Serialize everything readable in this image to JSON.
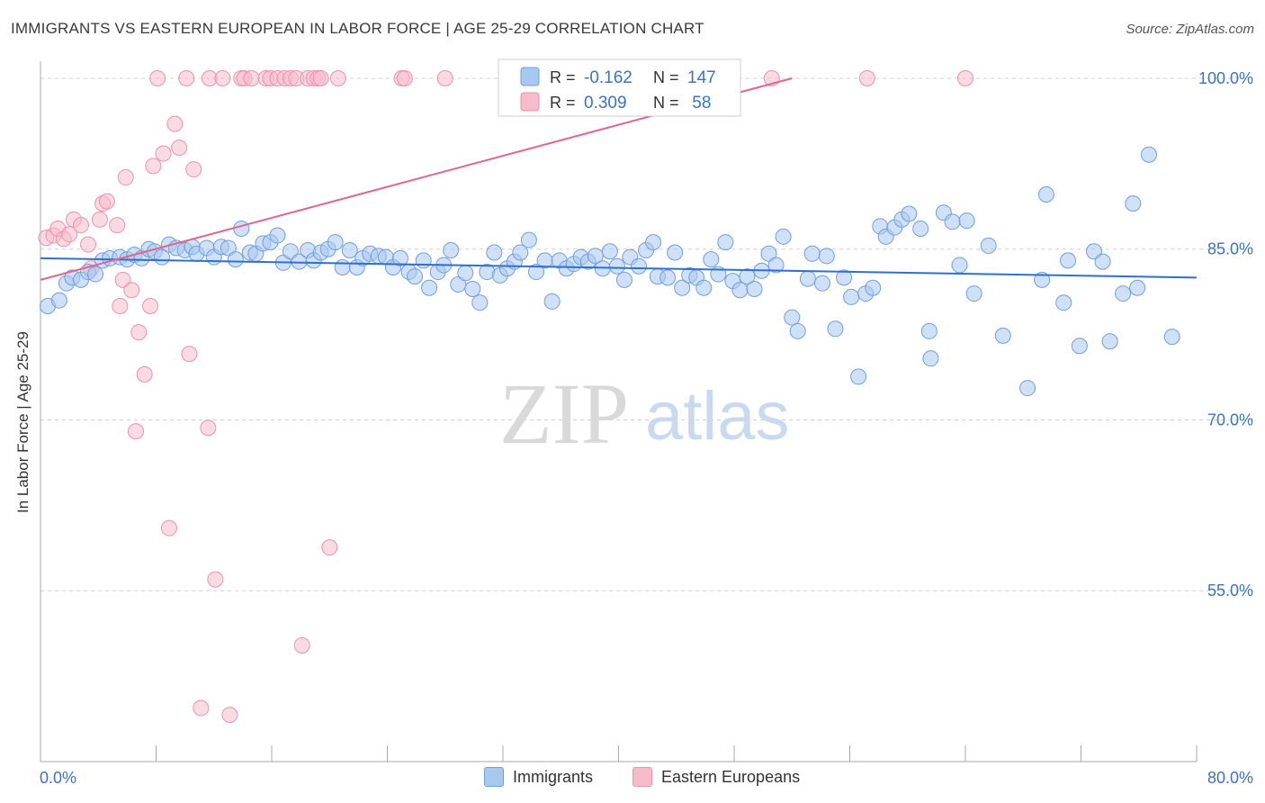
{
  "title": "IMMIGRANTS VS EASTERN EUROPEAN IN LABOR FORCE | AGE 25-29 CORRELATION CHART",
  "source": "Source: ZipAtlas.com",
  "watermark": {
    "zip": "ZIP",
    "atlas": "atlas"
  },
  "colors": {
    "blue_fill": "#a9c8f0",
    "blue_stroke": "#6f9fe0",
    "blue_line": "#2e6fcf",
    "pink_fill": "#f6bccc",
    "pink_stroke": "#ee92ad",
    "pink_line": "#e0668e",
    "axis_text": "#3b72c8",
    "grid": "#d0d0d0"
  },
  "legend_box": {
    "rows": [
      {
        "r_label": "R = ",
        "r_value": "-0.162",
        "n_label": "N = ",
        "n_value": "147",
        "series": "blue"
      },
      {
        "r_label": "R = ",
        "r_value": "0.309",
        "n_label": "N = ",
        "n_value": " 58",
        "series": "pink"
      }
    ]
  },
  "legend_bottom": [
    {
      "label": "Immigrants",
      "series": "blue"
    },
    {
      "label": "Eastern Europeans",
      "series": "pink"
    }
  ],
  "chart_data": {
    "type": "scatter",
    "title": "IMMIGRANTS VS EASTERN EUROPEAN IN LABOR FORCE | AGE 25-29 CORRELATION CHART",
    "xlabel": "",
    "ylabel": "In Labor Force | Age 25-29",
    "xlim": [
      0,
      80
    ],
    "ylim": [
      40,
      101.5
    ],
    "x_tick_labels": [
      "0.0%",
      "80.0%"
    ],
    "y_ticks": [
      55,
      70,
      85,
      100
    ],
    "y_tick_labels": [
      "55.0%",
      "70.0%",
      "85.0%",
      "100.0%"
    ],
    "grid": "horizontal dashed",
    "legend": "top-center",
    "series": [
      {
        "name": "Immigrants",
        "color": "blue",
        "trend": {
          "x": [
            0,
            80
          ],
          "y": [
            84.2,
            82.5
          ]
        },
        "points": [
          [
            0.5,
            80.0
          ],
          [
            1.3,
            80.5
          ],
          [
            1.8,
            82.0
          ],
          [
            2.2,
            82.5
          ],
          [
            2.8,
            82.3
          ],
          [
            3.3,
            83.0
          ],
          [
            3.8,
            82.8
          ],
          [
            4.3,
            84.0
          ],
          [
            4.8,
            84.2
          ],
          [
            5.5,
            84.3
          ],
          [
            6.0,
            84.1
          ],
          [
            6.5,
            84.5
          ],
          [
            7.0,
            84.2
          ],
          [
            7.5,
            85.0
          ],
          [
            7.9,
            84.8
          ],
          [
            8.4,
            84.3
          ],
          [
            8.9,
            85.4
          ],
          [
            9.4,
            85.1
          ],
          [
            10.0,
            84.9
          ],
          [
            10.5,
            85.2
          ],
          [
            10.8,
            84.6
          ],
          [
            11.5,
            85.1
          ],
          [
            12.0,
            84.3
          ],
          [
            12.5,
            85.2
          ],
          [
            13.0,
            85.1
          ],
          [
            13.5,
            84.1
          ],
          [
            13.9,
            86.8
          ],
          [
            14.5,
            84.7
          ],
          [
            14.9,
            84.6
          ],
          [
            15.4,
            85.5
          ],
          [
            15.9,
            85.6
          ],
          [
            16.4,
            86.2
          ],
          [
            16.8,
            83.8
          ],
          [
            17.3,
            84.8
          ],
          [
            17.9,
            83.9
          ],
          [
            18.5,
            84.9
          ],
          [
            18.9,
            84.0
          ],
          [
            19.4,
            84.7
          ],
          [
            19.9,
            85.0
          ],
          [
            20.4,
            85.6
          ],
          [
            20.9,
            83.4
          ],
          [
            21.4,
            84.9
          ],
          [
            21.9,
            83.4
          ],
          [
            22.3,
            84.2
          ],
          [
            22.8,
            84.6
          ],
          [
            23.4,
            84.4
          ],
          [
            23.9,
            84.3
          ],
          [
            24.4,
            83.4
          ],
          [
            24.9,
            84.2
          ],
          [
            25.5,
            83.0
          ],
          [
            25.9,
            82.6
          ],
          [
            26.5,
            84.0
          ],
          [
            26.9,
            81.6
          ],
          [
            27.5,
            83.0
          ],
          [
            27.9,
            83.6
          ],
          [
            28.4,
            84.9
          ],
          [
            28.9,
            81.9
          ],
          [
            29.4,
            82.9
          ],
          [
            29.9,
            81.5
          ],
          [
            30.4,
            80.3
          ],
          [
            30.9,
            83.0
          ],
          [
            31.4,
            84.7
          ],
          [
            31.8,
            82.7
          ],
          [
            32.3,
            83.3
          ],
          [
            32.8,
            83.9
          ],
          [
            33.2,
            84.7
          ],
          [
            33.8,
            85.8
          ],
          [
            34.3,
            83.0
          ],
          [
            34.9,
            84.0
          ],
          [
            35.4,
            80.4
          ],
          [
            35.9,
            84.0
          ],
          [
            36.4,
            83.3
          ],
          [
            36.9,
            83.7
          ],
          [
            37.4,
            84.3
          ],
          [
            37.9,
            83.9
          ],
          [
            38.4,
            84.4
          ],
          [
            38.9,
            83.3
          ],
          [
            39.4,
            84.8
          ],
          [
            39.9,
            83.5
          ],
          [
            40.4,
            82.3
          ],
          [
            40.8,
            84.3
          ],
          [
            41.4,
            83.5
          ],
          [
            41.9,
            84.9
          ],
          [
            42.4,
            85.6
          ],
          [
            42.7,
            82.6
          ],
          [
            43.4,
            82.5
          ],
          [
            43.9,
            84.7
          ],
          [
            44.4,
            81.6
          ],
          [
            44.9,
            82.7
          ],
          [
            45.4,
            82.5
          ],
          [
            45.9,
            81.6
          ],
          [
            46.4,
            84.1
          ],
          [
            46.9,
            82.8
          ],
          [
            47.4,
            85.6
          ],
          [
            47.9,
            82.2
          ],
          [
            48.4,
            81.4
          ],
          [
            48.9,
            82.6
          ],
          [
            49.4,
            81.5
          ],
          [
            49.9,
            83.1
          ],
          [
            50.4,
            84.6
          ],
          [
            50.9,
            83.6
          ],
          [
            51.4,
            86.1
          ],
          [
            52.0,
            79.0
          ],
          [
            52.4,
            77.8
          ],
          [
            53.1,
            82.4
          ],
          [
            53.4,
            84.6
          ],
          [
            54.1,
            82.0
          ],
          [
            54.4,
            84.4
          ],
          [
            55.0,
            78.0
          ],
          [
            55.6,
            82.5
          ],
          [
            56.1,
            80.8
          ],
          [
            56.6,
            73.8
          ],
          [
            57.1,
            81.1
          ],
          [
            57.6,
            81.6
          ],
          [
            58.1,
            87.0
          ],
          [
            58.5,
            86.1
          ],
          [
            59.1,
            86.9
          ],
          [
            59.6,
            87.6
          ],
          [
            60.1,
            88.1
          ],
          [
            60.9,
            86.8
          ],
          [
            61.5,
            77.8
          ],
          [
            61.6,
            75.4
          ],
          [
            62.5,
            88.2
          ],
          [
            63.1,
            87.4
          ],
          [
            63.6,
            83.6
          ],
          [
            64.1,
            87.5
          ],
          [
            64.6,
            81.1
          ],
          [
            65.6,
            85.3
          ],
          [
            66.6,
            77.4
          ],
          [
            68.3,
            72.8
          ],
          [
            69.3,
            82.3
          ],
          [
            69.6,
            89.8
          ],
          [
            70.8,
            80.3
          ],
          [
            71.1,
            84.0
          ],
          [
            71.9,
            76.5
          ],
          [
            72.9,
            84.8
          ],
          [
            73.5,
            83.9
          ],
          [
            74.0,
            76.9
          ],
          [
            74.9,
            81.1
          ],
          [
            75.6,
            89.0
          ],
          [
            75.9,
            81.6
          ],
          [
            76.7,
            93.3
          ],
          [
            78.3,
            77.3
          ]
        ]
      },
      {
        "name": "Eastern Europeans",
        "color": "pink",
        "trend": {
          "x": [
            0,
            52
          ],
          "y": [
            82.3,
            100.0
          ]
        },
        "points": [
          [
            0.4,
            86.0
          ],
          [
            0.9,
            86.2
          ],
          [
            1.2,
            86.8
          ],
          [
            1.6,
            85.9
          ],
          [
            2.0,
            86.3
          ],
          [
            2.3,
            87.6
          ],
          [
            2.8,
            87.1
          ],
          [
            3.3,
            85.4
          ],
          [
            3.5,
            83.3
          ],
          [
            4.1,
            87.6
          ],
          [
            4.3,
            89.0
          ],
          [
            4.6,
            89.2
          ],
          [
            5.3,
            87.1
          ],
          [
            5.5,
            80.0
          ],
          [
            5.7,
            82.3
          ],
          [
            5.9,
            91.3
          ],
          [
            6.3,
            81.4
          ],
          [
            6.6,
            69.0
          ],
          [
            6.8,
            77.7
          ],
          [
            7.2,
            74.0
          ],
          [
            7.6,
            80.0
          ],
          [
            7.8,
            92.3
          ],
          [
            8.1,
            100.0
          ],
          [
            8.5,
            93.4
          ],
          [
            8.9,
            60.5
          ],
          [
            9.3,
            96.0
          ],
          [
            9.6,
            93.9
          ],
          [
            10.1,
            100.0
          ],
          [
            10.3,
            75.8
          ],
          [
            10.6,
            92.0
          ],
          [
            11.1,
            44.7
          ],
          [
            11.6,
            69.3
          ],
          [
            11.7,
            100.0
          ],
          [
            12.1,
            56.0
          ],
          [
            12.6,
            100.0
          ],
          [
            13.1,
            44.1
          ],
          [
            13.9,
            100.0
          ],
          [
            14.1,
            100.0
          ],
          [
            14.6,
            100.0
          ],
          [
            15.6,
            100.0
          ],
          [
            15.9,
            100.0
          ],
          [
            16.4,
            100.0
          ],
          [
            16.9,
            100.0
          ],
          [
            17.3,
            100.0
          ],
          [
            17.7,
            100.0
          ],
          [
            18.1,
            50.2
          ],
          [
            18.5,
            100.0
          ],
          [
            18.9,
            100.0
          ],
          [
            19.2,
            100.0
          ],
          [
            19.4,
            100.0
          ],
          [
            20.0,
            58.8
          ],
          [
            20.6,
            100.0
          ],
          [
            25.0,
            100.0
          ],
          [
            25.2,
            100.0
          ],
          [
            28.0,
            100.0
          ],
          [
            50.6,
            100.0
          ],
          [
            57.2,
            100.0
          ],
          [
            64.0,
            100.0
          ]
        ]
      }
    ]
  }
}
